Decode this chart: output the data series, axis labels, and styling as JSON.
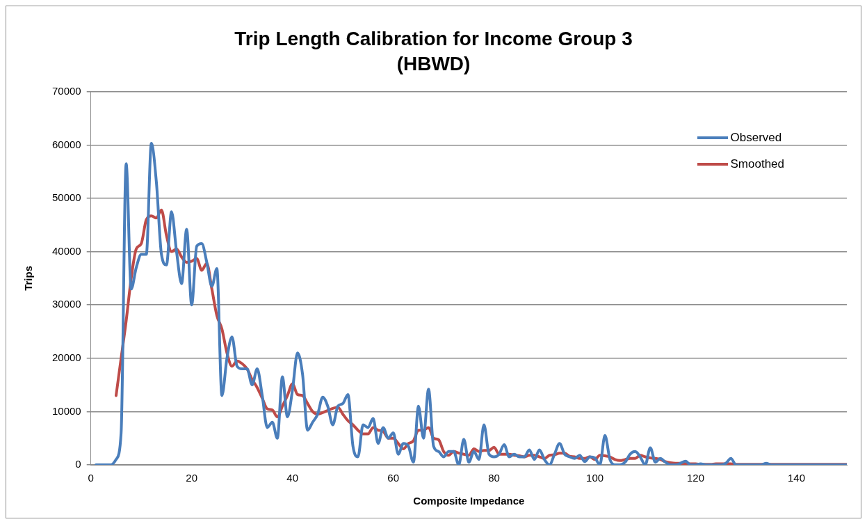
{
  "chart_data": {
    "type": "line",
    "title": "Trip Length Calibration for Income Group 3\n(HBWD)",
    "xlabel": "Composite Impedance",
    "ylabel": "Trips",
    "x": [
      1,
      2,
      3,
      4,
      5,
      6,
      7,
      8,
      9,
      10,
      11,
      12,
      13,
      14,
      15,
      16,
      17,
      18,
      19,
      20,
      21,
      22,
      23,
      24,
      25,
      26,
      27,
      28,
      29,
      30,
      31,
      32,
      33,
      34,
      35,
      36,
      37,
      38,
      39,
      40,
      41,
      42,
      43,
      44,
      45,
      46,
      47,
      48,
      49,
      50,
      51,
      52,
      53,
      54,
      55,
      56,
      57,
      58,
      59,
      60,
      61,
      62,
      63,
      64,
      65,
      66,
      67,
      68,
      69,
      70,
      71,
      72,
      73,
      74,
      75,
      76,
      77,
      78,
      79,
      80,
      81,
      82,
      83,
      84,
      85,
      86,
      87,
      88,
      89,
      90,
      91,
      92,
      93,
      94,
      95,
      96,
      97,
      98,
      99,
      100,
      101,
      102,
      103,
      104,
      105,
      106,
      107,
      108,
      109,
      110,
      111,
      112,
      113,
      114,
      115,
      116,
      117,
      118,
      119,
      120,
      121,
      122,
      123,
      124,
      125,
      126,
      127,
      128,
      129,
      130,
      131,
      132,
      133,
      134,
      135,
      136,
      137,
      138,
      139,
      140,
      141,
      142,
      143,
      144,
      145,
      146,
      147,
      148,
      149,
      150
    ],
    "series": [
      {
        "name": "Observed",
        "color": "#4a7ebb",
        "values": [
          0,
          0,
          0,
          0,
          1000,
          6000,
          56500,
          33000,
          37000,
          39500,
          39500,
          60300,
          53000,
          39500,
          37500,
          47500,
          40000,
          34000,
          44200,
          30000,
          41000,
          41500,
          38000,
          33500,
          36800,
          13000,
          20000,
          24000,
          18500,
          18000,
          18000,
          15000,
          18000,
          13000,
          7000,
          8000,
          5000,
          16500,
          9000,
          14000,
          21000,
          17000,
          6500,
          8000,
          9500,
          12700,
          11000,
          7500,
          11000,
          11500,
          13200,
          3500,
          1500,
          7500,
          7000,
          8700,
          4000,
          7000,
          5000,
          6000,
          2000,
          4000,
          3500,
          500,
          11000,
          5000,
          14200,
          3500,
          2500,
          1500,
          2500,
          2500,
          0,
          4800,
          500,
          2500,
          1000,
          7500,
          2000,
          1500,
          2000,
          3800,
          1500,
          2000,
          1500,
          1500,
          2800,
          1000,
          2800,
          1000,
          0,
          2000,
          4000,
          2000,
          1500,
          1200,
          1800,
          600,
          1500,
          1300,
          0,
          5500,
          1000,
          0,
          0,
          500,
          2000,
          2500,
          1500,
          0,
          3200,
          500,
          1200,
          500,
          0,
          0,
          300,
          700,
          0,
          0,
          200,
          0,
          0,
          0,
          0,
          300,
          1200,
          0,
          0,
          0,
          0,
          0,
          0,
          300,
          0,
          0,
          0,
          0,
          0,
          0,
          0,
          0,
          0,
          0,
          0,
          0,
          0,
          0,
          0,
          0
        ]
      },
      {
        "name": "Smoothed",
        "color": "#be4b48",
        "values": [
          null,
          null,
          null,
          null,
          13000,
          20000,
          27000,
          35000,
          40500,
          41500,
          46000,
          46700,
          46300,
          47800,
          43000,
          40000,
          40500,
          39000,
          38000,
          38200,
          38700,
          36500,
          37800,
          33000,
          28000,
          25500,
          21000,
          18500,
          19500,
          19000,
          18000,
          16000,
          14500,
          12500,
          10500,
          10300,
          9000,
          11000,
          13000,
          15200,
          13200,
          13000,
          11500,
          10000,
          9500,
          9800,
          10200,
          10600,
          10800,
          9500,
          8300,
          7500,
          6500,
          5800,
          5800,
          7000,
          6500,
          6300,
          5000,
          5000,
          4000,
          3000,
          4000,
          4500,
          6500,
          6500,
          7000,
          5000,
          4700,
          2500,
          1800,
          2500,
          2200,
          2000,
          1800,
          3000,
          2500,
          2700,
          2700,
          3300,
          2000,
          2000,
          2000,
          1800,
          1700,
          1500,
          1800,
          1800,
          1500,
          1200,
          1800,
          1900,
          2200,
          2200,
          1600,
          1500,
          1200,
          1200,
          1500,
          1000,
          1800,
          1700,
          1500,
          1000,
          800,
          1000,
          1200,
          1200,
          1800,
          1500,
          1300,
          1200,
          1000,
          600,
          400,
          300,
          300,
          200,
          200,
          200,
          100,
          100,
          100,
          200,
          200,
          200,
          200,
          100,
          100,
          100,
          100,
          100,
          100,
          100,
          100,
          100,
          100,
          100,
          100,
          100,
          100,
          100,
          100,
          100,
          100,
          100,
          100,
          100,
          100,
          100
        ]
      }
    ],
    "xlim": [
      0,
      150
    ],
    "xticks": [
      0,
      20,
      40,
      60,
      80,
      100,
      120,
      140
    ],
    "ylim": [
      0,
      70000
    ],
    "yticks": [
      0,
      10000,
      20000,
      30000,
      40000,
      50000,
      60000,
      70000
    ],
    "grid": "y",
    "legend": "top right",
    "marker": "none",
    "line_style": "solid"
  }
}
